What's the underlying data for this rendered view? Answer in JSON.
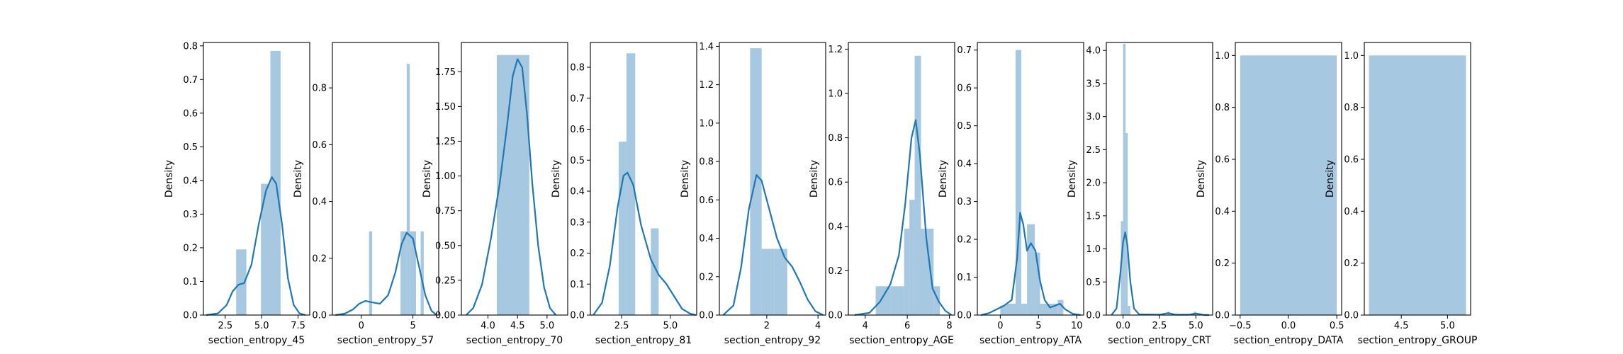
{
  "figure": {
    "background": "#ffffff"
  },
  "colors": {
    "bar": "#a6c8e0",
    "kde": "#1f77b4"
  },
  "chart_data": [
    {
      "type": "histogram+kde",
      "xlabel": "section_entropy_45",
      "ylabel": "Density",
      "xlim": [
        1.0,
        8.3
      ],
      "ylim": [
        0,
        0.81
      ],
      "xticks": [
        2.5,
        5.0,
        7.5
      ],
      "xtick_labels": [
        "2.5",
        "5.0",
        "7.5"
      ],
      "yticks": [
        0,
        0.1,
        0.2,
        0.3,
        0.4,
        0.5,
        0.6,
        0.7,
        0.8
      ],
      "ytick_labels": [
        "0.0",
        "0.1",
        "0.2",
        "0.3",
        "0.4",
        "0.5",
        "0.6",
        "0.7",
        "0.8"
      ],
      "bars": [
        {
          "x0": 3.25,
          "x1": 3.95,
          "density": 0.195
        },
        {
          "x0": 4.95,
          "x1": 5.6,
          "density": 0.39
        },
        {
          "x0": 5.6,
          "x1": 6.3,
          "density": 0.785
        }
      ],
      "kde": [
        [
          1.2,
          0.0
        ],
        [
          2.0,
          0.005
        ],
        [
          2.6,
          0.03
        ],
        [
          3.0,
          0.07
        ],
        [
          3.4,
          0.09
        ],
        [
          3.8,
          0.095
        ],
        [
          4.3,
          0.15
        ],
        [
          4.8,
          0.27
        ],
        [
          5.3,
          0.37
        ],
        [
          5.7,
          0.41
        ],
        [
          6.0,
          0.39
        ],
        [
          6.4,
          0.27
        ],
        [
          6.8,
          0.11
        ],
        [
          7.2,
          0.03
        ],
        [
          7.6,
          0.005
        ],
        [
          8.0,
          0.0
        ]
      ]
    },
    {
      "type": "histogram+kde",
      "xlabel": "section_entropy_57",
      "ylabel": "Density",
      "xlim": [
        -2.8,
        7.5
      ],
      "ylim": [
        0,
        0.96
      ],
      "xticks": [
        0,
        5
      ],
      "xtick_labels": [
        "0",
        "5"
      ],
      "yticks": [
        0,
        0.2,
        0.4,
        0.6,
        0.8
      ],
      "ytick_labels": [
        "0.0",
        "0.2",
        "0.4",
        "0.6",
        "0.8"
      ],
      "bars": [
        {
          "x0": 0.75,
          "x1": 1.05,
          "density": 0.295
        },
        {
          "x0": 3.8,
          "x1": 4.4,
          "density": 0.295
        },
        {
          "x0": 4.4,
          "x1": 4.7,
          "density": 0.885
        },
        {
          "x0": 4.7,
          "x1": 5.3,
          "density": 0.295
        },
        {
          "x0": 5.75,
          "x1": 6.05,
          "density": 0.295
        }
      ],
      "kde": [
        [
          -2.5,
          0.0
        ],
        [
          -1.6,
          0.005
        ],
        [
          -0.8,
          0.02
        ],
        [
          -0.2,
          0.04
        ],
        [
          0.4,
          0.05
        ],
        [
          1.0,
          0.045
        ],
        [
          1.8,
          0.04
        ],
        [
          2.6,
          0.07
        ],
        [
          3.3,
          0.15
        ],
        [
          3.9,
          0.25
        ],
        [
          4.4,
          0.29
        ],
        [
          5.0,
          0.27
        ],
        [
          5.6,
          0.17
        ],
        [
          6.2,
          0.07
        ],
        [
          6.8,
          0.015
        ],
        [
          7.3,
          0.0
        ]
      ]
    },
    {
      "type": "histogram+kde",
      "xlabel": "section_entropy_70",
      "ylabel": "Density",
      "xlim": [
        3.55,
        5.35
      ],
      "ylim": [
        0,
        1.96
      ],
      "xticks": [
        4.0,
        4.5,
        5.0
      ],
      "xtick_labels": [
        "4.0",
        "4.5",
        "5.0"
      ],
      "yticks": [
        0,
        0.25,
        0.5,
        0.75,
        1.0,
        1.25,
        1.5,
        1.75
      ],
      "ytick_labels": [
        "0.00",
        "0.25",
        "0.50",
        "0.75",
        "1.00",
        "1.25",
        "1.50",
        "1.75"
      ],
      "bars": [
        {
          "x0": 4.15,
          "x1": 4.42,
          "density": 1.87
        },
        {
          "x0": 4.42,
          "x1": 4.7,
          "density": 1.87
        }
      ],
      "kde": [
        [
          3.63,
          0.0
        ],
        [
          3.75,
          0.05
        ],
        [
          3.9,
          0.22
        ],
        [
          4.05,
          0.55
        ],
        [
          4.2,
          0.95
        ],
        [
          4.32,
          1.35
        ],
        [
          4.42,
          1.72
        ],
        [
          4.5,
          1.84
        ],
        [
          4.58,
          1.78
        ],
        [
          4.66,
          1.45
        ],
        [
          4.75,
          0.95
        ],
        [
          4.85,
          0.5
        ],
        [
          4.95,
          0.2
        ],
        [
          5.05,
          0.05
        ],
        [
          5.15,
          0.0
        ]
      ]
    },
    {
      "type": "histogram+kde",
      "xlabel": "section_entropy_81",
      "ylabel": "Density",
      "xlim": [
        0.9,
        6.35
      ],
      "ylim": [
        0,
        0.88
      ],
      "xticks": [
        2.5,
        5.0
      ],
      "xtick_labels": [
        "2.5",
        "5.0"
      ],
      "yticks": [
        0,
        0.1,
        0.2,
        0.3,
        0.4,
        0.5,
        0.6,
        0.7,
        0.8
      ],
      "ytick_labels": [
        "0.0",
        "0.1",
        "0.2",
        "0.3",
        "0.4",
        "0.5",
        "0.6",
        "0.7",
        "0.8"
      ],
      "bars": [
        {
          "x0": 2.35,
          "x1": 2.75,
          "density": 0.56
        },
        {
          "x0": 2.75,
          "x1": 3.2,
          "density": 0.845
        },
        {
          "x0": 4.0,
          "x1": 4.4,
          "density": 0.28
        }
      ],
      "kde": [
        [
          1.05,
          0.0
        ],
        [
          1.5,
          0.04
        ],
        [
          1.9,
          0.16
        ],
        [
          2.3,
          0.35
        ],
        [
          2.6,
          0.45
        ],
        [
          2.8,
          0.46
        ],
        [
          3.1,
          0.42
        ],
        [
          3.5,
          0.29
        ],
        [
          4.0,
          0.18
        ],
        [
          4.4,
          0.13
        ],
        [
          4.8,
          0.1
        ],
        [
          5.2,
          0.06
        ],
        [
          5.6,
          0.02
        ],
        [
          6.0,
          0.005
        ],
        [
          6.3,
          0.0
        ]
      ]
    },
    {
      "type": "histogram+kde",
      "xlabel": "section_entropy_92",
      "ylabel": "Density",
      "xlim": [
        0.15,
        4.3
      ],
      "ylim": [
        0,
        1.42
      ],
      "xticks": [
        2,
        4
      ],
      "xtick_labels": [
        "2",
        "4"
      ],
      "yticks": [
        0,
        0.2,
        0.4,
        0.6,
        0.8,
        1.0,
        1.2,
        1.4
      ],
      "ytick_labels": [
        "0.0",
        "0.2",
        "0.4",
        "0.6",
        "0.8",
        "1.0",
        "1.2",
        "1.4"
      ],
      "bars": [
        {
          "x0": 1.35,
          "x1": 1.8,
          "density": 1.39
        },
        {
          "x0": 1.8,
          "x1": 2.3,
          "density": 0.345
        },
        {
          "x0": 2.3,
          "x1": 2.8,
          "density": 0.345
        }
      ],
      "kde": [
        [
          0.3,
          0.0
        ],
        [
          0.7,
          0.05
        ],
        [
          1.0,
          0.25
        ],
        [
          1.3,
          0.55
        ],
        [
          1.6,
          0.73
        ],
        [
          1.8,
          0.7
        ],
        [
          2.1,
          0.55
        ],
        [
          2.4,
          0.4
        ],
        [
          2.7,
          0.3
        ],
        [
          3.0,
          0.25
        ],
        [
          3.3,
          0.17
        ],
        [
          3.6,
          0.08
        ],
        [
          3.9,
          0.02
        ],
        [
          4.2,
          0.0
        ]
      ]
    },
    {
      "type": "histogram+kde",
      "xlabel": "section_entropy_AGE",
      "ylabel": "Density",
      "xlim": [
        3.2,
        8.25
      ],
      "ylim": [
        0,
        1.23
      ],
      "xticks": [
        4,
        6,
        8
      ],
      "xtick_labels": [
        "4",
        "6",
        "8"
      ],
      "yticks": [
        0,
        0.2,
        0.4,
        0.6,
        0.8,
        1.0,
        1.2
      ],
      "ytick_labels": [
        "0.0",
        "0.2",
        "0.4",
        "0.6",
        "0.8",
        "1.0",
        "1.2"
      ],
      "bars": [
        {
          "x0": 4.5,
          "x1": 5.2,
          "density": 0.13
        },
        {
          "x0": 5.2,
          "x1": 5.85,
          "density": 0.13
        },
        {
          "x0": 5.85,
          "x1": 6.1,
          "density": 0.39
        },
        {
          "x0": 6.1,
          "x1": 6.35,
          "density": 0.52
        },
        {
          "x0": 6.35,
          "x1": 6.65,
          "density": 1.17
        },
        {
          "x0": 6.65,
          "x1": 7.25,
          "density": 0.39
        },
        {
          "x0": 7.25,
          "x1": 7.55,
          "density": 0.13
        }
      ],
      "kde": [
        [
          3.5,
          0.0
        ],
        [
          4.2,
          0.01
        ],
        [
          4.7,
          0.06
        ],
        [
          5.2,
          0.14
        ],
        [
          5.6,
          0.27
        ],
        [
          5.9,
          0.5
        ],
        [
          6.2,
          0.8
        ],
        [
          6.4,
          0.88
        ],
        [
          6.6,
          0.72
        ],
        [
          6.9,
          0.35
        ],
        [
          7.2,
          0.12
        ],
        [
          7.5,
          0.06
        ],
        [
          7.8,
          0.02
        ],
        [
          8.1,
          0.0
        ]
      ]
    },
    {
      "type": "histogram+kde",
      "xlabel": "section_entropy_ATA",
      "ylabel": "Density",
      "xlim": [
        -3.0,
        10.9
      ],
      "ylim": [
        0,
        0.72
      ],
      "xticks": [
        0,
        5,
        10
      ],
      "xtick_labels": [
        "0",
        "5",
        "10"
      ],
      "yticks": [
        0,
        0.1,
        0.2,
        0.3,
        0.4,
        0.5,
        0.6,
        0.7
      ],
      "ytick_labels": [
        "0.0",
        "0.1",
        "0.2",
        "0.3",
        "0.4",
        "0.5",
        "0.6",
        "0.7"
      ],
      "bars": [
        {
          "x0": 0.0,
          "x1": 0.75,
          "density": 0.025
        },
        {
          "x0": 0.75,
          "x1": 2.0,
          "density": 0.03
        },
        {
          "x0": 2.0,
          "x1": 2.75,
          "density": 0.7
        },
        {
          "x0": 2.75,
          "x1": 3.5,
          "density": 0.03
        },
        {
          "x0": 3.5,
          "x1": 4.5,
          "density": 0.24
        },
        {
          "x0": 4.5,
          "x1": 5.2,
          "density": 0.165
        },
        {
          "x0": 5.2,
          "x1": 7.5,
          "density": 0.03
        },
        {
          "x0": 7.5,
          "x1": 8.25,
          "density": 0.04
        }
      ],
      "kde": [
        [
          -2.5,
          0.0
        ],
        [
          -1.5,
          0.005
        ],
        [
          -0.5,
          0.015
        ],
        [
          0.5,
          0.025
        ],
        [
          1.5,
          0.04
        ],
        [
          2.2,
          0.15
        ],
        [
          2.6,
          0.27
        ],
        [
          3.0,
          0.24
        ],
        [
          3.5,
          0.17
        ],
        [
          4.0,
          0.19
        ],
        [
          4.6,
          0.17
        ],
        [
          5.2,
          0.09
        ],
        [
          5.8,
          0.04
        ],
        [
          6.5,
          0.02
        ],
        [
          7.2,
          0.025
        ],
        [
          7.8,
          0.03
        ],
        [
          8.5,
          0.015
        ],
        [
          9.5,
          0.003
        ],
        [
          10.5,
          0.0
        ]
      ]
    },
    {
      "type": "histogram+kde",
      "xlabel": "section_entropy_CRT",
      "ylabel": "Density",
      "xlim": [
        -1.15,
        6.15
      ],
      "ylim": [
        0,
        4.12
      ],
      "xticks": [
        0.0,
        2.5,
        5.0
      ],
      "xtick_labels": [
        "0.0",
        "2.5",
        "5.0"
      ],
      "yticks": [
        0,
        0.5,
        1.0,
        1.5,
        2.0,
        2.5,
        3.0,
        3.5,
        4.0
      ],
      "ytick_labels": [
        "0.0",
        "0.5",
        "1.0",
        "1.5",
        "2.0",
        "2.5",
        "3.0",
        "3.5",
        "4.0"
      ],
      "bars": [
        {
          "x0": -0.15,
          "x1": 0.0,
          "density": 1.42
        },
        {
          "x0": 0.0,
          "x1": 0.17,
          "density": 4.1
        },
        {
          "x0": 0.17,
          "x1": 0.32,
          "density": 2.75
        },
        {
          "x0": 0.32,
          "x1": 0.5,
          "density": 0.14
        },
        {
          "x0": 3.05,
          "x1": 3.2,
          "density": 0.05
        },
        {
          "x0": 4.85,
          "x1": 5.0,
          "density": 0.05
        }
      ],
      "kde": [
        [
          -0.8,
          0.0
        ],
        [
          -0.45,
          0.1
        ],
        [
          -0.2,
          0.6
        ],
        [
          0.0,
          1.1
        ],
        [
          0.15,
          1.25
        ],
        [
          0.3,
          1.05
        ],
        [
          0.5,
          0.5
        ],
        [
          0.75,
          0.1
        ],
        [
          1.1,
          0.01
        ],
        [
          2.5,
          0.005
        ],
        [
          3.1,
          0.03
        ],
        [
          3.6,
          0.005
        ],
        [
          4.5,
          0.005
        ],
        [
          5.0,
          0.025
        ],
        [
          5.5,
          0.003
        ],
        [
          5.9,
          0.0
        ]
      ]
    },
    {
      "type": "histogram",
      "xlabel": "section_entropy_DATA",
      "ylabel": "Density",
      "xlim": [
        -0.55,
        0.55
      ],
      "ylim": [
        0,
        1.05
      ],
      "xticks": [
        -0.5,
        0.0,
        0.5
      ],
      "xtick_labels": [
        "−0.5",
        "0.0",
        "0.5"
      ],
      "yticks": [
        0,
        0.2,
        0.4,
        0.6,
        0.8,
        1.0
      ],
      "ytick_labels": [
        "0.0",
        "0.2",
        "0.4",
        "0.6",
        "0.8",
        "1.0"
      ],
      "bars": [
        {
          "x0": -0.5,
          "x1": 0.5,
          "density": 1.0
        }
      ],
      "kde": []
    },
    {
      "type": "histogram",
      "xlabel": "section_entropy_GROUP",
      "ylabel": "Density",
      "xlim": [
        4.1,
        5.25
      ],
      "ylim": [
        0,
        1.05
      ],
      "xticks": [
        4.5,
        5.0
      ],
      "xtick_labels": [
        "4.5",
        "5.0"
      ],
      "yticks": [
        0,
        0.2,
        0.4,
        0.6,
        0.8,
        1.0
      ],
      "ytick_labels": [
        "0.0",
        "0.2",
        "0.4",
        "0.6",
        "0.8",
        "1.0"
      ],
      "bars": [
        {
          "x0": 4.15,
          "x1": 5.2,
          "density": 1.0
        }
      ],
      "kde": []
    }
  ]
}
